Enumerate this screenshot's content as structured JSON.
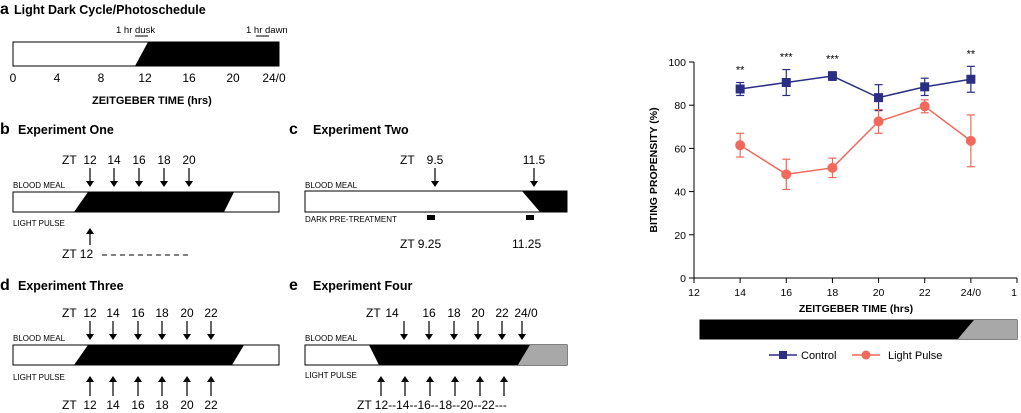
{
  "panel_a": {
    "letter": "a",
    "title": "Light Dark Cycle/Photoschedule",
    "dusk_label": "1 hr dusk",
    "dawn_label": "1 hr dawn",
    "ticks": [
      "0",
      "4",
      "8",
      "12",
      "16",
      "20",
      "24/0"
    ],
    "axis_label": "ZEITGEBER TIME (hrs)"
  },
  "panel_b": {
    "letter": "b",
    "title": "Experiment One",
    "zt_prefix": "ZT",
    "zt_values": [
      "12",
      "14",
      "16",
      "18",
      "20"
    ],
    "blood_meal": "BLOOD MEAL",
    "light_pulse": "LIGHT PULSE",
    "pulse_label": "ZT 12"
  },
  "panel_c": {
    "letter": "c",
    "title": "Experiment Two",
    "zt_prefix": "ZT",
    "zt_values": [
      "9.5",
      "11.5"
    ],
    "blood_meal": "BLOOD MEAL",
    "dark_pre": "DARK PRE-TREATMENT",
    "pre_values": [
      "ZT 9.25",
      "11.25"
    ]
  },
  "panel_d": {
    "letter": "d",
    "title": "Experiment Three",
    "zt_prefix": "ZT",
    "zt_values": [
      "12",
      "14",
      "16",
      "18",
      "20",
      "22"
    ],
    "blood_meal": "BLOOD MEAL",
    "light_pulse": "LIGHT PULSE",
    "bottom_prefix": "ZT",
    "bottom_values": [
      "12",
      "14",
      "16",
      "18",
      "20",
      "22"
    ]
  },
  "panel_e": {
    "letter": "e",
    "title": "Experiment Four",
    "zt_prefix": "ZT",
    "zt_values": [
      "14",
      "16",
      "18",
      "20",
      "22",
      "24/0"
    ],
    "blood_meal": "BLOOD MEAL",
    "light_pulse": "LIGHT PULSE",
    "bottom_label": "ZT 12--14--16--18--20--22---"
  },
  "chart_data": {
    "type": "line",
    "title": "",
    "xlabel": "ZEITGEBER TIME (hrs)",
    "ylabel": "BITING PROPENSITY (%)",
    "xlim": [
      12,
      26
    ],
    "ylim": [
      0,
      100
    ],
    "x_ticks": [
      "12",
      "14",
      "16",
      "18",
      "20",
      "22",
      "24/0",
      "1"
    ],
    "y_ticks": [
      0,
      20,
      40,
      60,
      80,
      100
    ],
    "x": [
      14,
      16,
      18,
      20,
      22,
      24
    ],
    "series": [
      {
        "name": "Control",
        "color": "#2b2e83",
        "marker": "square",
        "values": [
          87.5,
          90.5,
          93.5,
          83.5,
          88.5,
          92
        ],
        "errors": [
          3,
          6,
          2,
          6,
          4,
          6
        ]
      },
      {
        "name": "Light Pulse",
        "color": "#f0695a",
        "marker": "circle",
        "values": [
          61.5,
          48,
          51,
          72.5,
          79.5,
          63.5
        ],
        "errors": [
          5.5,
          7,
          4.5,
          5.5,
          3,
          12
        ]
      }
    ],
    "significance": [
      {
        "x": 14,
        "label": "**"
      },
      {
        "x": 16,
        "label": "***"
      },
      {
        "x": 18,
        "label": "***"
      },
      {
        "x": 24,
        "label": "**"
      }
    ],
    "legend_position": "bottom",
    "grid": false
  }
}
